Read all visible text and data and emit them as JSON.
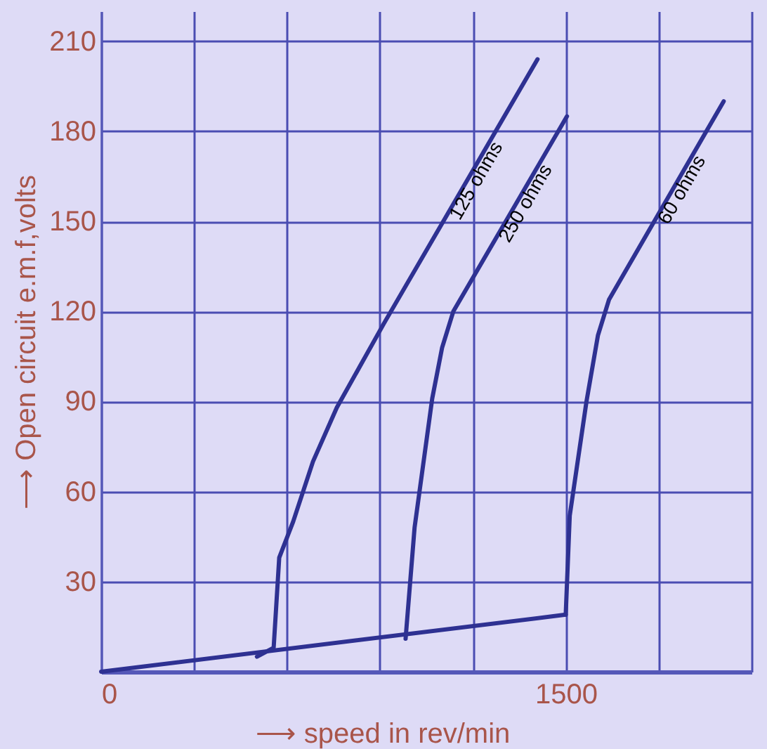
{
  "chart_data": {
    "type": "line",
    "xlabel": "⟶ speed in rev/min",
    "ylabel": "⟶ Open circuit e.m.f,volts",
    "xlim": [
      0,
      2100
    ],
    "ylim": [
      0,
      220
    ],
    "xticks": [
      0,
      {
        "value": 300,
        "label": null
      },
      {
        "value": 600,
        "label": null
      },
      {
        "value": 900,
        "label": null
      },
      {
        "value": 1200,
        "label": null
      },
      1500,
      {
        "value": 1800,
        "label": null
      },
      {
        "value": 2100,
        "label": null
      }
    ],
    "yticks": [
      30,
      60,
      90,
      120,
      150,
      180,
      210
    ],
    "grid": true,
    "line_style": "solid",
    "marker": "none",
    "series": [
      {
        "color": "#2e3192",
        "x": [
          0,
          1500
        ],
        "values": [
          0,
          19
        ]
      },
      {
        "name": "125 ohms",
        "color": "#2e3192",
        "x": [
          503,
          557,
          575,
          620,
          684,
          761,
          913,
          1409
        ],
        "values": [
          5,
          8,
          38,
          50,
          70,
          88,
          116,
          204
        ]
      },
      {
        "name": "250 ohms",
        "color": "#2e3192",
        "x": [
          983,
          1012,
          1069,
          1101,
          1137,
          1504
        ],
        "values": [
          11,
          48,
          91,
          108,
          120,
          185
        ]
      },
      {
        "name": "60 ohms",
        "color": "#2e3192",
        "x": [
          1500,
          1513,
          1567,
          1604,
          1640,
          2010
        ],
        "values": [
          19,
          52,
          90,
          112,
          124,
          190
        ]
      }
    ]
  }
}
